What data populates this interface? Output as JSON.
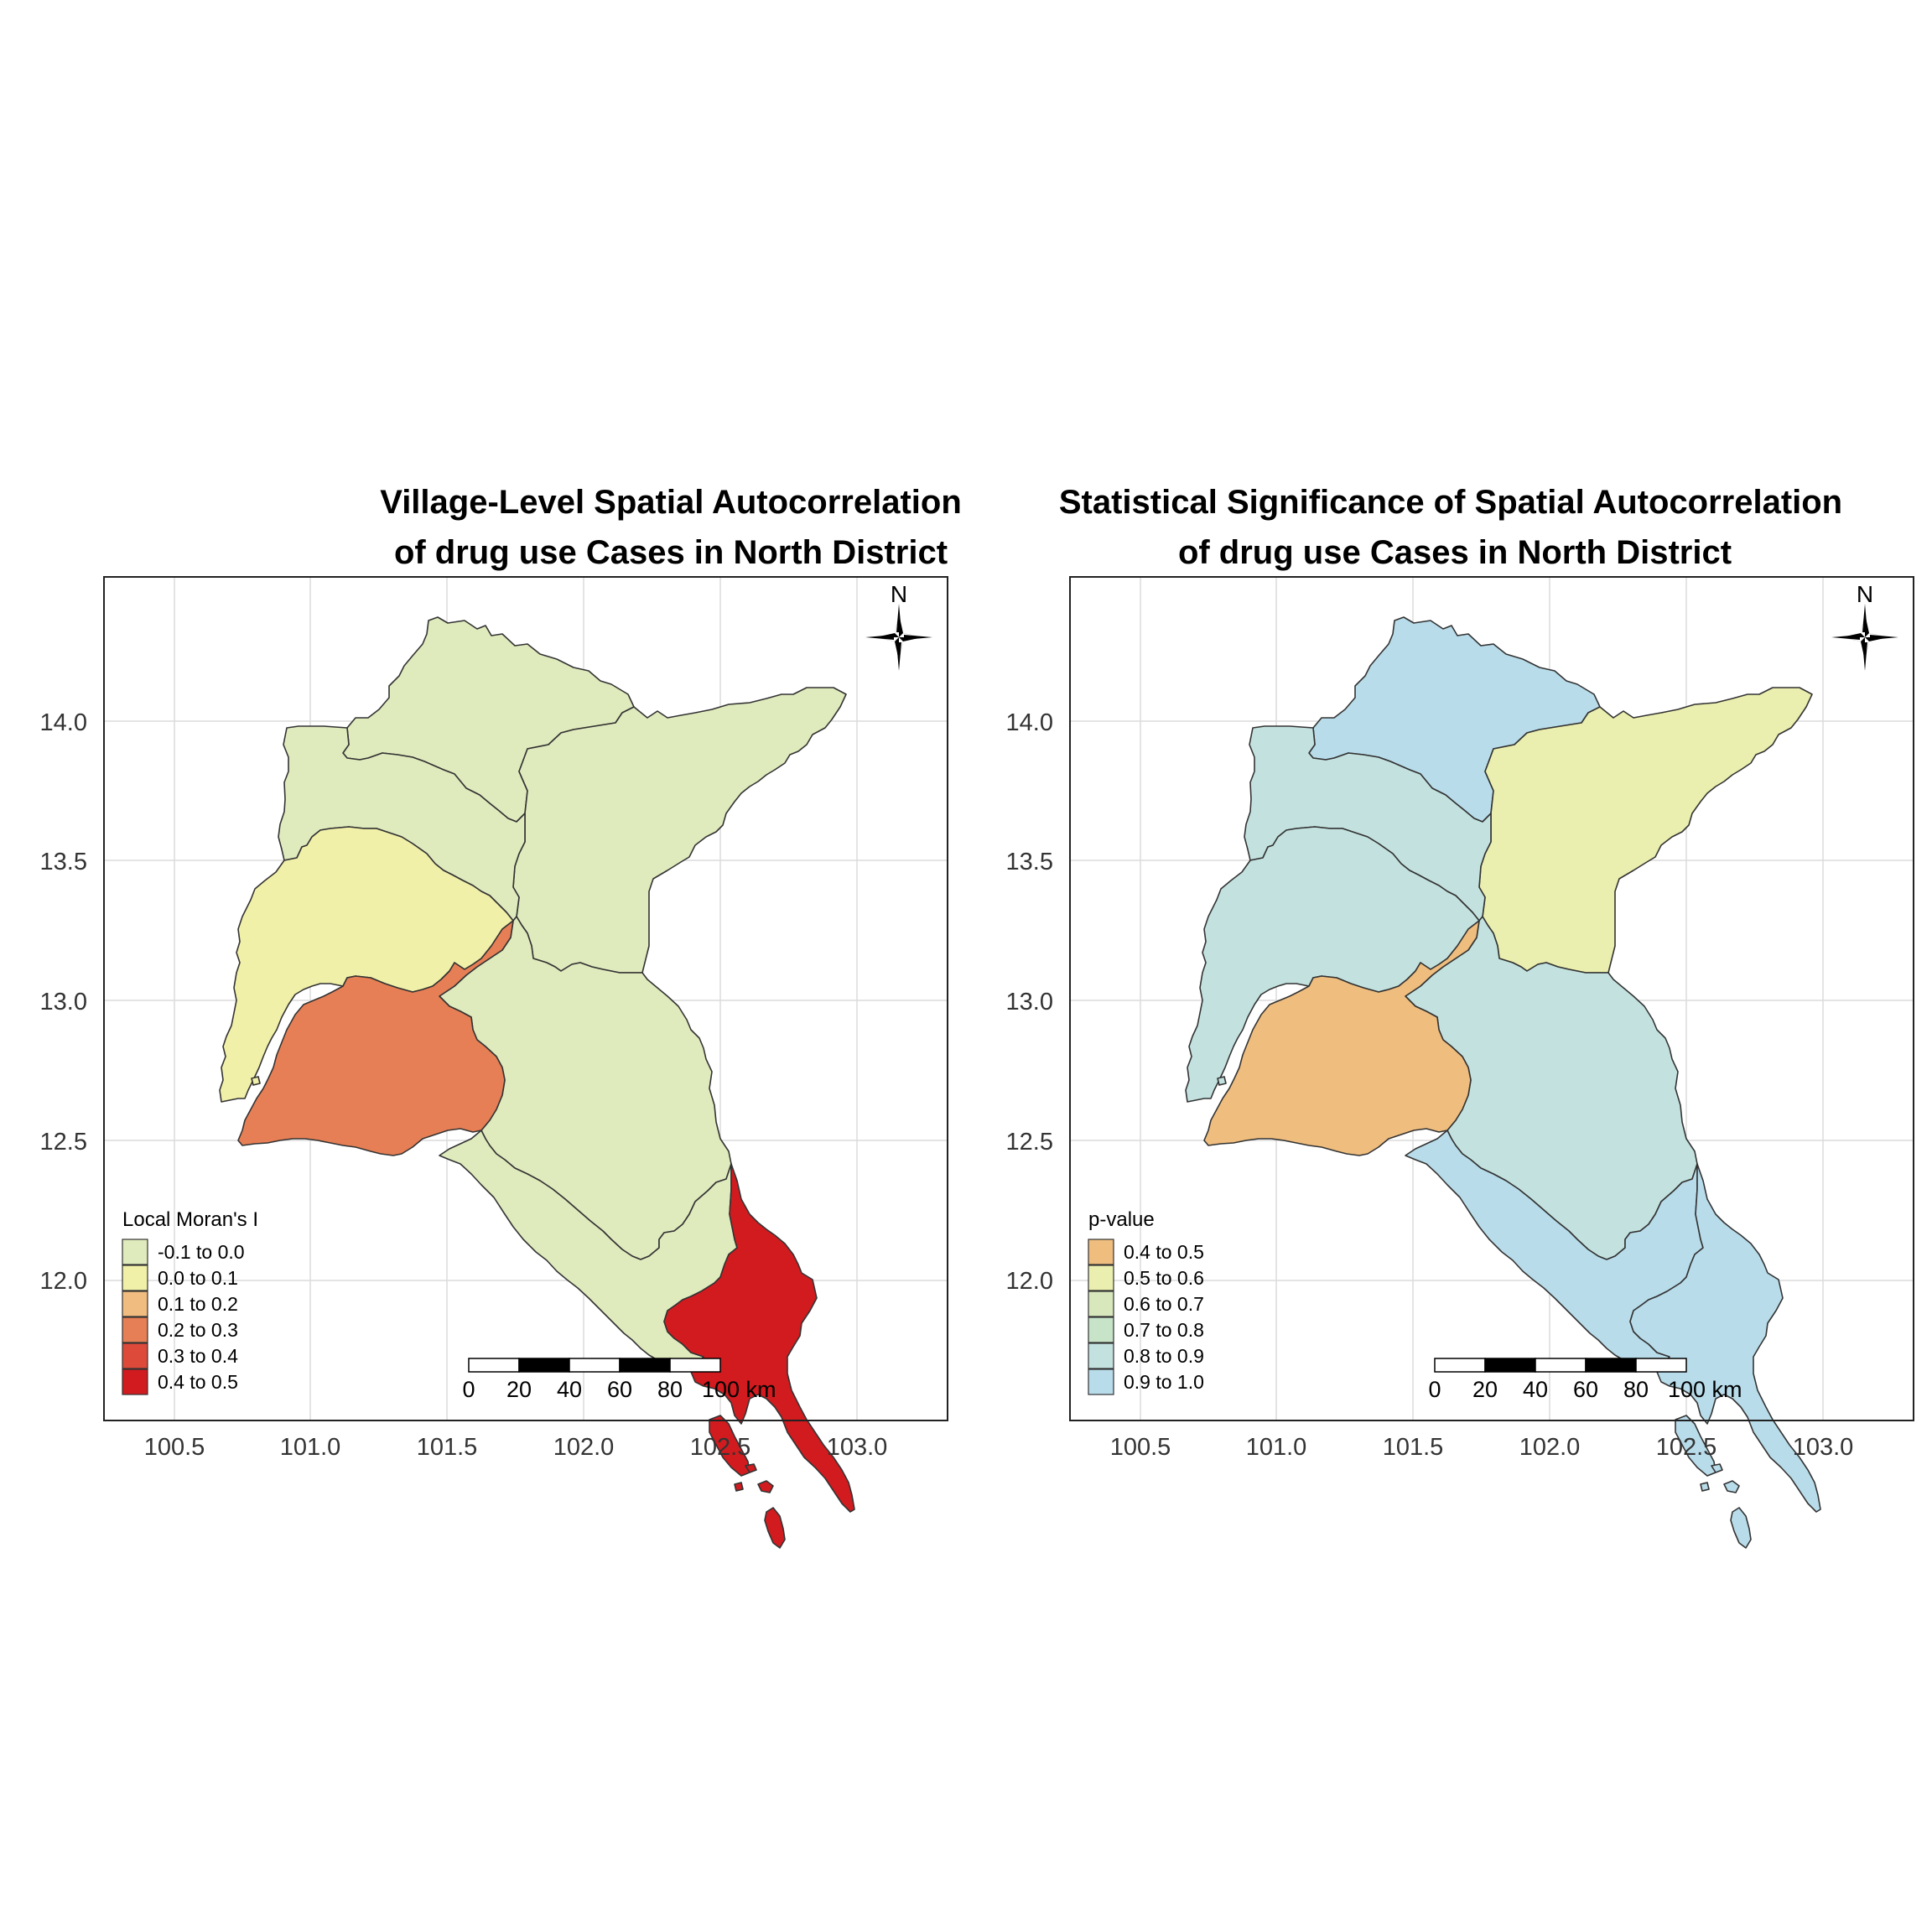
{
  "maps": [
    {
      "title_line1": "Village-Level Spatial Autocorrelation",
      "title_line2": "of drug use Cases in North District",
      "legend_title": "Local Moran's I",
      "legend": [
        {
          "label": "-0.1 to 0.0",
          "color": "#dfeabd"
        },
        {
          "label": "0.0 to 0.1",
          "color": "#f1f0a9"
        },
        {
          "label": "0.1 to 0.2",
          "color": "#f1bc7f"
        },
        {
          "label": "0.2 to 0.3",
          "color": "#e67f55"
        },
        {
          "label": "0.3 to 0.4",
          "color": "#de4a3a"
        },
        {
          "label": "0.4 to 0.5",
          "color": "#d11b1f"
        }
      ],
      "district_fills": {
        "north": "#dfeabd",
        "northeast": "#dfeabd",
        "west": "#dfeabd",
        "central": "#dfeabd",
        "southwest": "#f1f0a9",
        "south_central": "#e67f55",
        "east": "#dfeabd",
        "southeast": "#d11b1f"
      }
    },
    {
      "title_line1": "Statistical Significance of Spatial Autocorrelation",
      "title_line2": "of drug use Cases in North District",
      "legend_title": "p-value",
      "legend": [
        {
          "label": "0.4 to 0.5",
          "color": "#efbd7e"
        },
        {
          "label": "0.5 to 0.6",
          "color": "#eaeeae"
        },
        {
          "label": "0.6 to 0.7",
          "color": "#d8e8bc"
        },
        {
          "label": "0.7 to 0.8",
          "color": "#c7e3c8"
        },
        {
          "label": "0.8 to 0.9",
          "color": "#c3e2df"
        },
        {
          "label": "0.9 to 1.0",
          "color": "#b8dcea"
        }
      ],
      "district_fills": {
        "north": "#b8dcea",
        "northeast": "#eaeeae",
        "west": "#c3e2df",
        "central": "#c3e2df",
        "southwest": "#c3e2df",
        "south_central": "#efbd7e",
        "east": "#b8dcea",
        "southeast": "#b8dcea"
      }
    }
  ],
  "axes": {
    "x_ticks": [
      "100.5",
      "101.0",
      "101.5",
      "102.0",
      "102.5",
      "103.0"
    ],
    "x_values": [
      100.5,
      101.0,
      101.5,
      102.0,
      102.5,
      103.0
    ],
    "y_ticks": [
      "14.0",
      "13.5",
      "13.0",
      "12.5",
      "12.0"
    ],
    "y_values": [
      14.0,
      13.5,
      13.0,
      12.5,
      12.0
    ],
    "x_range": [
      100.24,
      103.33
    ],
    "y_range": [
      11.48,
      14.52
    ]
  },
  "north_arrow_label": "N",
  "scale_bar": {
    "labels": [
      "0",
      "20",
      "40",
      "60",
      "80",
      "100 km"
    ]
  }
}
